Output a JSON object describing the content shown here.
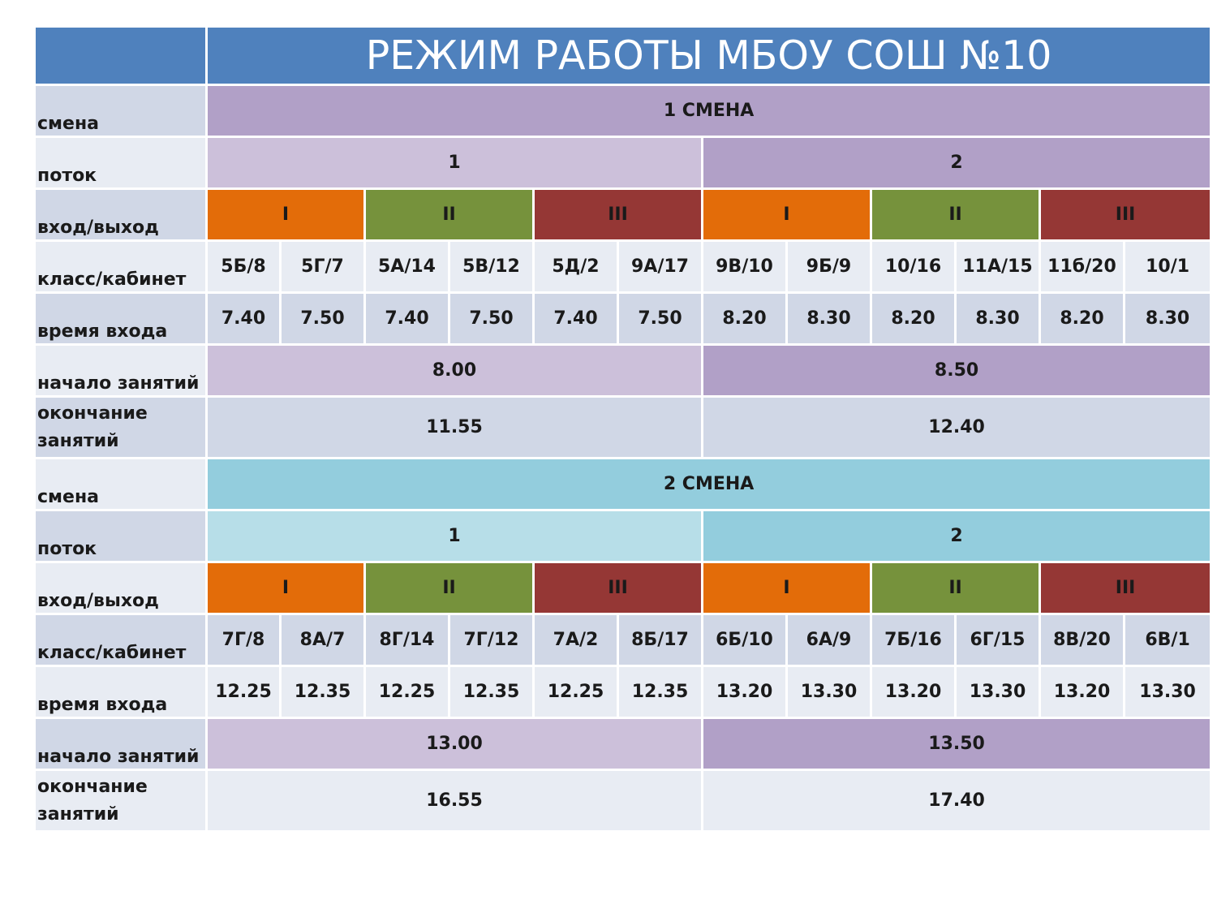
{
  "title": "РЕЖИМ РАБОТЫ МБОУ СОШ №10",
  "colors": {
    "title_bg": "#4f81bd",
    "shift1": "#b1a0c7",
    "shift2": "#93cddd",
    "gate_I": "#e36c09",
    "gate_II": "#76923c",
    "gate_III": "#953735",
    "label_bg": "#d0d7e6"
  },
  "labels": {
    "shift": "смена",
    "flow": "поток",
    "gate": "вход/выход",
    "class_room": "класс/кабинет",
    "entry_time": "время входа",
    "start": "начало занятий",
    "end_line1": "окончание",
    "end_line2": "занятий"
  },
  "shift1": {
    "name": "1 СМЕНА",
    "flows": [
      "1",
      "2"
    ],
    "gates": [
      "I",
      "II",
      "III",
      "I",
      "II",
      "III"
    ],
    "classes": [
      "5Б/8",
      "5Г/7",
      "5А/14",
      "5В/12",
      "5Д/2",
      "9А/17",
      "9В/10",
      "9Б/9",
      "10/16",
      "11А/15",
      "11б/20",
      "10/1"
    ],
    "entry_times": [
      "7.40",
      "7.50",
      "7.40",
      "7.50",
      "7.40",
      "7.50",
      "8.20",
      "8.30",
      "8.20",
      "8.30",
      "8.20",
      "8.30"
    ],
    "start": [
      "8.00",
      "8.50"
    ],
    "end": [
      "11.55",
      "12.40"
    ]
  },
  "shift2": {
    "name": "2 СМЕНА",
    "flows": [
      "1",
      "2"
    ],
    "gates": [
      "I",
      "II",
      "III",
      "I",
      "II",
      "III"
    ],
    "classes": [
      "7Г/8",
      "8А/7",
      "8Г/14",
      "7Г/12",
      "7А/2",
      "8Б/17",
      "6Б/10",
      "6А/9",
      "7Б/16",
      "6Г/15",
      "8В/20",
      "6В/1"
    ],
    "entry_times": [
      "12.25",
      "12.35",
      "12.25",
      "12.35",
      "12.25",
      "12.35",
      "13.20",
      "13.30",
      "13.20",
      "13.30",
      "13.20",
      "13.30"
    ],
    "start": [
      "13.00",
      "13.50"
    ],
    "end": [
      "16.55",
      "17.40"
    ]
  }
}
